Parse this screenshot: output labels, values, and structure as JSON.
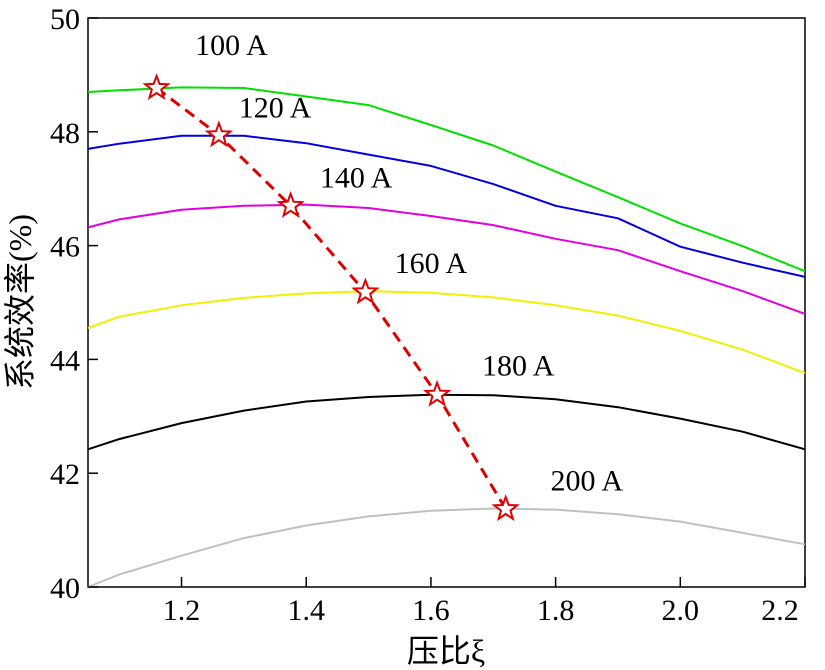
{
  "chart_data": {
    "type": "line",
    "title": "",
    "xlabel": "压比ξ",
    "ylabel": "系统效率(%)",
    "xlim": [
      1.05,
      2.2
    ],
    "ylim": [
      40,
      50
    ],
    "x_ticks": [
      "1.2",
      "1.4",
      "1.6",
      "1.8",
      "2.0",
      "2.2"
    ],
    "y_ticks": [
      "40",
      "42",
      "44",
      "46",
      "48",
      "50"
    ],
    "grid": false,
    "legend": "none",
    "series": [
      {
        "name": "100 A",
        "color": "#00e000",
        "points": [
          [
            1.05,
            48.7
          ],
          [
            1.1,
            48.73
          ],
          [
            1.2,
            48.78
          ],
          [
            1.3,
            48.77
          ],
          [
            1.4,
            48.62
          ],
          [
            1.5,
            48.47
          ],
          [
            1.6,
            48.12
          ],
          [
            1.7,
            47.76
          ],
          [
            1.8,
            47.3
          ],
          [
            1.9,
            46.85
          ],
          [
            2.0,
            46.39
          ],
          [
            2.1,
            45.99
          ],
          [
            2.2,
            45.55
          ]
        ]
      },
      {
        "name": "120 A",
        "color": "#0000e0",
        "points": [
          [
            1.05,
            47.7
          ],
          [
            1.1,
            47.79
          ],
          [
            1.2,
            47.93
          ],
          [
            1.3,
            47.93
          ],
          [
            1.4,
            47.8
          ],
          [
            1.5,
            47.6
          ],
          [
            1.6,
            47.4
          ],
          [
            1.7,
            47.08
          ],
          [
            1.8,
            46.7
          ],
          [
            1.9,
            46.48
          ],
          [
            2.0,
            45.98
          ],
          [
            2.1,
            45.7
          ],
          [
            2.2,
            45.45
          ]
        ]
      },
      {
        "name": "140 A",
        "color": "#e000e0",
        "points": [
          [
            1.05,
            46.32
          ],
          [
            1.1,
            46.46
          ],
          [
            1.2,
            46.63
          ],
          [
            1.3,
            46.7
          ],
          [
            1.4,
            46.72
          ],
          [
            1.5,
            46.66
          ],
          [
            1.6,
            46.52
          ],
          [
            1.7,
            46.36
          ],
          [
            1.8,
            46.12
          ],
          [
            1.9,
            45.92
          ],
          [
            2.0,
            45.55
          ],
          [
            2.1,
            45.2
          ],
          [
            2.2,
            44.8
          ]
        ]
      },
      {
        "name": "160 A",
        "color": "#f0f000",
        "points": [
          [
            1.05,
            44.55
          ],
          [
            1.1,
            44.75
          ],
          [
            1.2,
            44.95
          ],
          [
            1.3,
            45.08
          ],
          [
            1.4,
            45.16
          ],
          [
            1.5,
            45.2
          ],
          [
            1.6,
            45.17
          ],
          [
            1.7,
            45.09
          ],
          [
            1.8,
            44.95
          ],
          [
            1.9,
            44.77
          ],
          [
            2.0,
            44.5
          ],
          [
            2.1,
            44.17
          ],
          [
            2.2,
            43.76
          ]
        ]
      },
      {
        "name": "180 A",
        "color": "#000000",
        "points": [
          [
            1.05,
            42.42
          ],
          [
            1.1,
            42.6
          ],
          [
            1.2,
            42.88
          ],
          [
            1.3,
            43.1
          ],
          [
            1.4,
            43.26
          ],
          [
            1.5,
            43.34
          ],
          [
            1.6,
            43.38
          ],
          [
            1.7,
            43.37
          ],
          [
            1.8,
            43.3
          ],
          [
            1.9,
            43.16
          ],
          [
            2.0,
            42.96
          ],
          [
            2.1,
            42.73
          ],
          [
            2.2,
            42.42
          ]
        ]
      },
      {
        "name": "200 A",
        "color": "#c0c0c0",
        "points": [
          [
            1.05,
            40.0
          ],
          [
            1.1,
            40.22
          ],
          [
            1.2,
            40.55
          ],
          [
            1.3,
            40.86
          ],
          [
            1.4,
            41.08
          ],
          [
            1.5,
            41.24
          ],
          [
            1.6,
            41.34
          ],
          [
            1.7,
            41.38
          ],
          [
            1.8,
            41.36
          ],
          [
            1.9,
            41.28
          ],
          [
            2.0,
            41.15
          ],
          [
            2.1,
            40.95
          ],
          [
            2.2,
            40.75
          ]
        ]
      }
    ],
    "optimum_curve": {
      "color": "#e00000",
      "marker": "star",
      "points": [
        [
          1.16,
          48.77
        ],
        [
          1.26,
          47.94
        ],
        [
          1.375,
          46.7
        ],
        [
          1.495,
          45.18
        ],
        [
          1.61,
          43.38
        ],
        [
          1.72,
          41.37
        ]
      ]
    },
    "labels": [
      {
        "text": "100 A",
        "x": 1.28,
        "y": 49.35
      },
      {
        "text": "120 A",
        "x": 1.35,
        "y": 48.25
      },
      {
        "text": "140 A",
        "x": 1.48,
        "y": 47.02
      },
      {
        "text": "160 A",
        "x": 1.6,
        "y": 45.52
      },
      {
        "text": "180 A",
        "x": 1.74,
        "y": 43.72
      },
      {
        "text": "200 A",
        "x": 1.85,
        "y": 41.7
      }
    ]
  }
}
